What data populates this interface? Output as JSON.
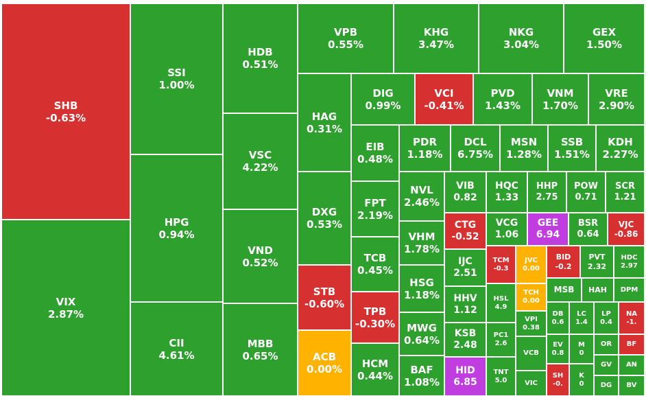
{
  "colors": {
    "up": "#2ea02e",
    "down": "#d63030",
    "flat": "#ffb300",
    "ceiling": "#c03ee0"
  },
  "chart_data": {
    "type": "treemap",
    "tiles": [
      {
        "code": "SHB",
        "change": "-0.63%",
        "status": "down"
      },
      {
        "code": "VIX",
        "change": "2.87%",
        "status": "up"
      },
      {
        "code": "SSI",
        "change": "1.00%",
        "status": "up"
      },
      {
        "code": "HPG",
        "change": "0.94%",
        "status": "up"
      },
      {
        "code": "CII",
        "change": "4.61%",
        "status": "up"
      },
      {
        "code": "HDB",
        "change": "0.51%",
        "status": "up"
      },
      {
        "code": "VSC",
        "change": "4.22%",
        "status": "up"
      },
      {
        "code": "VND",
        "change": "0.52%",
        "status": "up"
      },
      {
        "code": "MBB",
        "change": "0.65%",
        "status": "up"
      },
      {
        "code": "VPB",
        "change": "0.55%",
        "status": "up"
      },
      {
        "code": "KHG",
        "change": "3.47%",
        "status": "up"
      },
      {
        "code": "NKG",
        "change": "3.04%",
        "status": "up"
      },
      {
        "code": "GEX",
        "change": "1.50%",
        "status": "up"
      },
      {
        "code": "HAG",
        "change": "0.31%",
        "status": "up"
      },
      {
        "code": "DXG",
        "change": "0.53%",
        "status": "up"
      },
      {
        "code": "STB",
        "change": "-0.60%",
        "status": "down"
      },
      {
        "code": "ACB",
        "change": "0.00%",
        "status": "flat"
      },
      {
        "code": "DIG",
        "change": "0.99%",
        "status": "up"
      },
      {
        "code": "VCI",
        "change": "-0.41%",
        "status": "down"
      },
      {
        "code": "PVD",
        "change": "1.43%",
        "status": "up"
      },
      {
        "code": "VNM",
        "change": "1.70%",
        "status": "up"
      },
      {
        "code": "VRE",
        "change": "2.90%",
        "status": "up"
      },
      {
        "code": "EIB",
        "change": "0.48%",
        "status": "up"
      },
      {
        "code": "FPT",
        "change": "2.19%",
        "status": "up"
      },
      {
        "code": "TCB",
        "change": "0.45%",
        "status": "up"
      },
      {
        "code": "TPB",
        "change": "-0.30%",
        "status": "down"
      },
      {
        "code": "HCM",
        "change": "0.44%",
        "status": "up"
      },
      {
        "code": "PDR",
        "change": "1.18%",
        "status": "up"
      },
      {
        "code": "DCL",
        "change": "6.75%",
        "status": "up"
      },
      {
        "code": "MSN",
        "change": "1.28%",
        "status": "up"
      },
      {
        "code": "SSB",
        "change": "1.51%",
        "status": "up"
      },
      {
        "code": "KDH",
        "change": "2.27%",
        "status": "up"
      },
      {
        "code": "NVL",
        "change": "2.46%",
        "status": "up"
      },
      {
        "code": "VHM",
        "change": "1.78%",
        "status": "up"
      },
      {
        "code": "HSG",
        "change": "1.18%",
        "status": "up"
      },
      {
        "code": "MWG",
        "change": "0.64%",
        "status": "up"
      },
      {
        "code": "BAF",
        "change": "1.08%",
        "status": "up"
      },
      {
        "code": "VIB",
        "change": "0.82",
        "status": "up"
      },
      {
        "code": "HQC",
        "change": "1.33",
        "status": "up"
      },
      {
        "code": "HHP",
        "change": "2.75",
        "status": "up"
      },
      {
        "code": "POW",
        "change": "0.71",
        "status": "up"
      },
      {
        "code": "SCR",
        "change": "1.21",
        "status": "up"
      },
      {
        "code": "CTG",
        "change": "-0.52",
        "status": "down"
      },
      {
        "code": "VCG",
        "change": "1.06",
        "status": "up"
      },
      {
        "code": "GEE",
        "change": "6.94",
        "status": "ceiling"
      },
      {
        "code": "BSR",
        "change": "0.64",
        "status": "up"
      },
      {
        "code": "VJC",
        "change": "-0.86",
        "status": "down"
      },
      {
        "code": "IJC",
        "change": "2.51",
        "status": "up"
      },
      {
        "code": "TCM",
        "change": "-0.3",
        "status": "down"
      },
      {
        "code": "JVC",
        "change": "0.00",
        "status": "flat"
      },
      {
        "code": "BID",
        "change": "-0.2",
        "status": "down"
      },
      {
        "code": "PVT",
        "change": "2.32",
        "status": "up"
      },
      {
        "code": "HDC",
        "change": "2.97",
        "status": "up"
      },
      {
        "code": "TCH",
        "change": "0.00",
        "status": "flat"
      },
      {
        "code": "MSB",
        "change": "",
        "status": "up"
      },
      {
        "code": "HAH",
        "change": "",
        "status": "up"
      },
      {
        "code": "DPM",
        "change": "",
        "status": "up"
      },
      {
        "code": "HHV",
        "change": "1.12",
        "status": "up"
      },
      {
        "code": "HSL",
        "change": "4.9",
        "status": "up"
      },
      {
        "code": "VPI",
        "change": "0.38",
        "status": "up"
      },
      {
        "code": "DB",
        "change": "0.6",
        "status": "up"
      },
      {
        "code": "LC",
        "change": "1.4",
        "status": "up"
      },
      {
        "code": "LP",
        "change": "0.4",
        "status": "up"
      },
      {
        "code": "NA",
        "change": "-1.",
        "status": "down"
      },
      {
        "code": "KSB",
        "change": "2.48",
        "status": "up"
      },
      {
        "code": "PC1",
        "change": "2.6",
        "status": "up"
      },
      {
        "code": "EV",
        "change": "0.8",
        "status": "up"
      },
      {
        "code": "M",
        "change": "0",
        "status": "up"
      },
      {
        "code": "OR",
        "change": "",
        "status": "up"
      },
      {
        "code": "BF",
        "change": "",
        "status": "down"
      },
      {
        "code": "VCB",
        "change": "",
        "status": "up"
      },
      {
        "code": "GV",
        "change": "",
        "status": "up"
      },
      {
        "code": "AN",
        "change": "",
        "status": "up"
      },
      {
        "code": "HID",
        "change": "6.85",
        "status": "ceiling"
      },
      {
        "code": "TNT",
        "change": "5.0",
        "status": "up"
      },
      {
        "code": "VIC",
        "change": "",
        "status": "up"
      },
      {
        "code": "SH",
        "change": "-0.",
        "status": "down"
      },
      {
        "code": "K",
        "change": "0",
        "status": "up"
      },
      {
        "code": "DG",
        "change": "",
        "status": "up"
      },
      {
        "code": "BV",
        "change": "",
        "status": "up"
      }
    ]
  }
}
